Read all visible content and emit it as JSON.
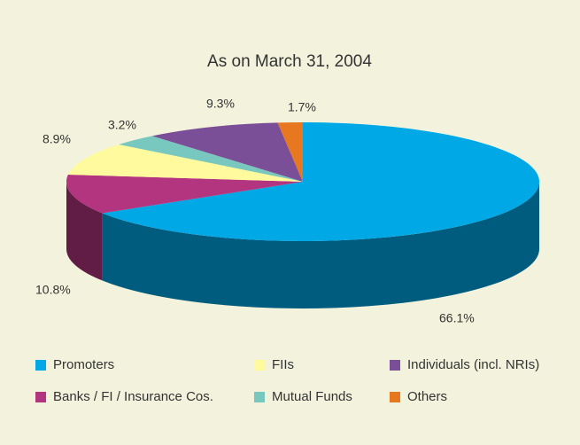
{
  "chart_data": {
    "type": "pie",
    "title": "As on March 31, 2004",
    "categories": [
      "Promoters",
      "Banks / FI / Insurance Cos.",
      "FIIs",
      "Mutual Funds",
      "Individuals (incl. NRIs)",
      "Others"
    ],
    "values": [
      66.1,
      10.8,
      8.9,
      3.2,
      9.3,
      1.7
    ],
    "value_labels": [
      "66.1%",
      "10.8%",
      "8.9%",
      "3.2%",
      "9.3%",
      "1.7%"
    ],
    "colors": [
      "#00a8e6",
      "#b3347f",
      "#fffa9e",
      "#79c8bf",
      "#7b4f97",
      "#e8781f"
    ]
  }
}
